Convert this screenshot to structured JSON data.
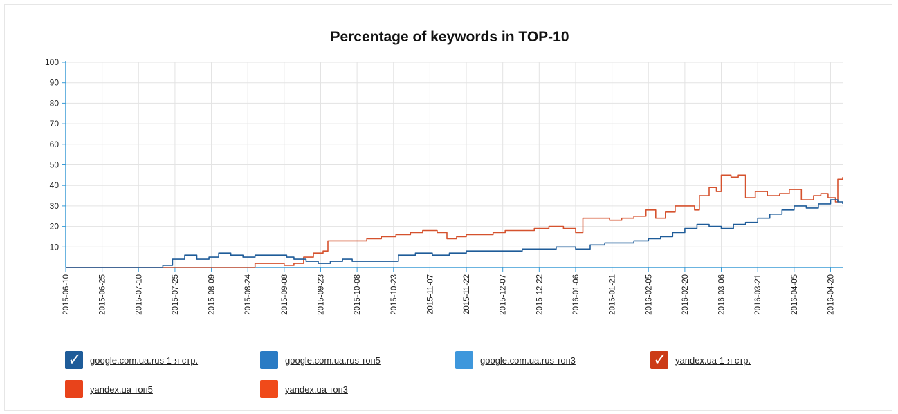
{
  "chart_data": {
    "type": "line",
    "title": "Percentage of keywords in TOP-10",
    "xlabel": "",
    "ylabel": "",
    "ylim": [
      0,
      100
    ],
    "xlim": [
      "2015-06-10",
      "2016-04-25"
    ],
    "yticks": [
      10,
      20,
      30,
      40,
      50,
      60,
      70,
      80,
      90,
      100
    ],
    "xticks": [
      "2015-06-10",
      "2015-06-25",
      "2015-07-10",
      "2015-07-25",
      "2015-08-09",
      "2015-08-24",
      "2015-09-08",
      "2015-09-23",
      "2015-10-08",
      "2015-10-23",
      "2015-11-07",
      "2015-11-22",
      "2015-12-07",
      "2015-12-22",
      "2016-01-06",
      "2016-01-21",
      "2016-02-05",
      "2016-02-20",
      "2016-03-06",
      "2016-03-21",
      "2016-04-05",
      "2016-04-20"
    ],
    "grid": true,
    "legend_position": "bottom",
    "series": [
      {
        "name": "yandex.ua 1-я стр.",
        "color": "#d5522e",
        "checked": true,
        "x": [
          "2015-06-10",
          "2015-08-25",
          "2015-08-27",
          "2015-08-30",
          "2015-09-03",
          "2015-09-08",
          "2015-09-12",
          "2015-09-16",
          "2015-09-20",
          "2015-09-24",
          "2015-09-26",
          "2015-10-01",
          "2015-10-06",
          "2015-10-12",
          "2015-10-18",
          "2015-10-24",
          "2015-10-30",
          "2015-11-04",
          "2015-11-10",
          "2015-11-14",
          "2015-11-18",
          "2015-11-22",
          "2015-11-27",
          "2015-12-03",
          "2015-12-08",
          "2015-12-14",
          "2015-12-20",
          "2015-12-26",
          "2016-01-01",
          "2016-01-06",
          "2016-01-09",
          "2016-01-14",
          "2016-01-20",
          "2016-01-25",
          "2016-01-30",
          "2016-02-04",
          "2016-02-08",
          "2016-02-12",
          "2016-02-16",
          "2016-02-20",
          "2016-02-24",
          "2016-02-26",
          "2016-03-01",
          "2016-03-04",
          "2016-03-06",
          "2016-03-10",
          "2016-03-13",
          "2016-03-16",
          "2016-03-20",
          "2016-03-25",
          "2016-03-30",
          "2016-04-03",
          "2016-04-08",
          "2016-04-13",
          "2016-04-16",
          "2016-04-19",
          "2016-04-22",
          "2016-04-23",
          "2016-04-25"
        ],
        "values": [
          0,
          0,
          2,
          2,
          2,
          1,
          2,
          5,
          7,
          8,
          13,
          13,
          13,
          14,
          15,
          16,
          17,
          18,
          17,
          14,
          15,
          16,
          16,
          17,
          18,
          18,
          19,
          20,
          19,
          17,
          24,
          24,
          23,
          24,
          25,
          28,
          24,
          27,
          30,
          30,
          28,
          35,
          39,
          37,
          45,
          44,
          45,
          34,
          37,
          35,
          36,
          38,
          33,
          35,
          36,
          34,
          32,
          43,
          44
        ]
      },
      {
        "name": "google.com.ua.rus 1-я стр.",
        "color": "#1f5c99",
        "checked": true,
        "x": [
          "2015-06-10",
          "2015-07-17",
          "2015-07-20",
          "2015-07-24",
          "2015-07-29",
          "2015-08-03",
          "2015-08-08",
          "2015-08-12",
          "2015-08-17",
          "2015-08-22",
          "2015-08-27",
          "2015-09-01",
          "2015-09-06",
          "2015-09-09",
          "2015-09-12",
          "2015-09-17",
          "2015-09-22",
          "2015-09-27",
          "2015-10-02",
          "2015-10-06",
          "2015-10-12",
          "2015-10-20",
          "2015-10-25",
          "2015-11-01",
          "2015-11-08",
          "2015-11-15",
          "2015-11-22",
          "2015-11-30",
          "2015-12-08",
          "2015-12-15",
          "2015-12-22",
          "2015-12-29",
          "2016-01-06",
          "2016-01-12",
          "2016-01-18",
          "2016-01-24",
          "2016-01-30",
          "2016-02-05",
          "2016-02-10",
          "2016-02-15",
          "2016-02-20",
          "2016-02-25",
          "2016-03-01",
          "2016-03-06",
          "2016-03-11",
          "2016-03-16",
          "2016-03-21",
          "2016-03-26",
          "2016-03-31",
          "2016-04-05",
          "2016-04-10",
          "2016-04-15",
          "2016-04-20",
          "2016-04-23",
          "2016-04-25"
        ],
        "values": [
          0,
          0,
          1,
          4,
          6,
          4,
          5,
          7,
          6,
          5,
          6,
          6,
          6,
          5,
          4,
          3,
          2,
          3,
          4,
          3,
          3,
          3,
          6,
          7,
          6,
          7,
          8,
          8,
          8,
          9,
          9,
          10,
          9,
          11,
          12,
          12,
          13,
          14,
          15,
          17,
          19,
          21,
          20,
          19,
          21,
          22,
          24,
          26,
          28,
          30,
          29,
          31,
          33,
          32,
          31
        ]
      }
    ],
    "legend": [
      {
        "label": "google.com.ua.rus 1-я стр.",
        "color": "#1f5c99",
        "checked": true
      },
      {
        "label": "google.com.ua.rus топ5",
        "color": "#2a7bc4",
        "checked": false
      },
      {
        "label": "google.com.ua.rus топ3",
        "color": "#3e97dc",
        "checked": false
      },
      {
        "label": "yandex.ua 1-я стр.",
        "color": "#cc3b16",
        "checked": true
      },
      {
        "label": "yandex.ua топ5",
        "color": "#e8431b",
        "checked": false
      },
      {
        "label": "yandex.ua топ3",
        "color": "#f04a1a",
        "checked": false
      }
    ]
  }
}
